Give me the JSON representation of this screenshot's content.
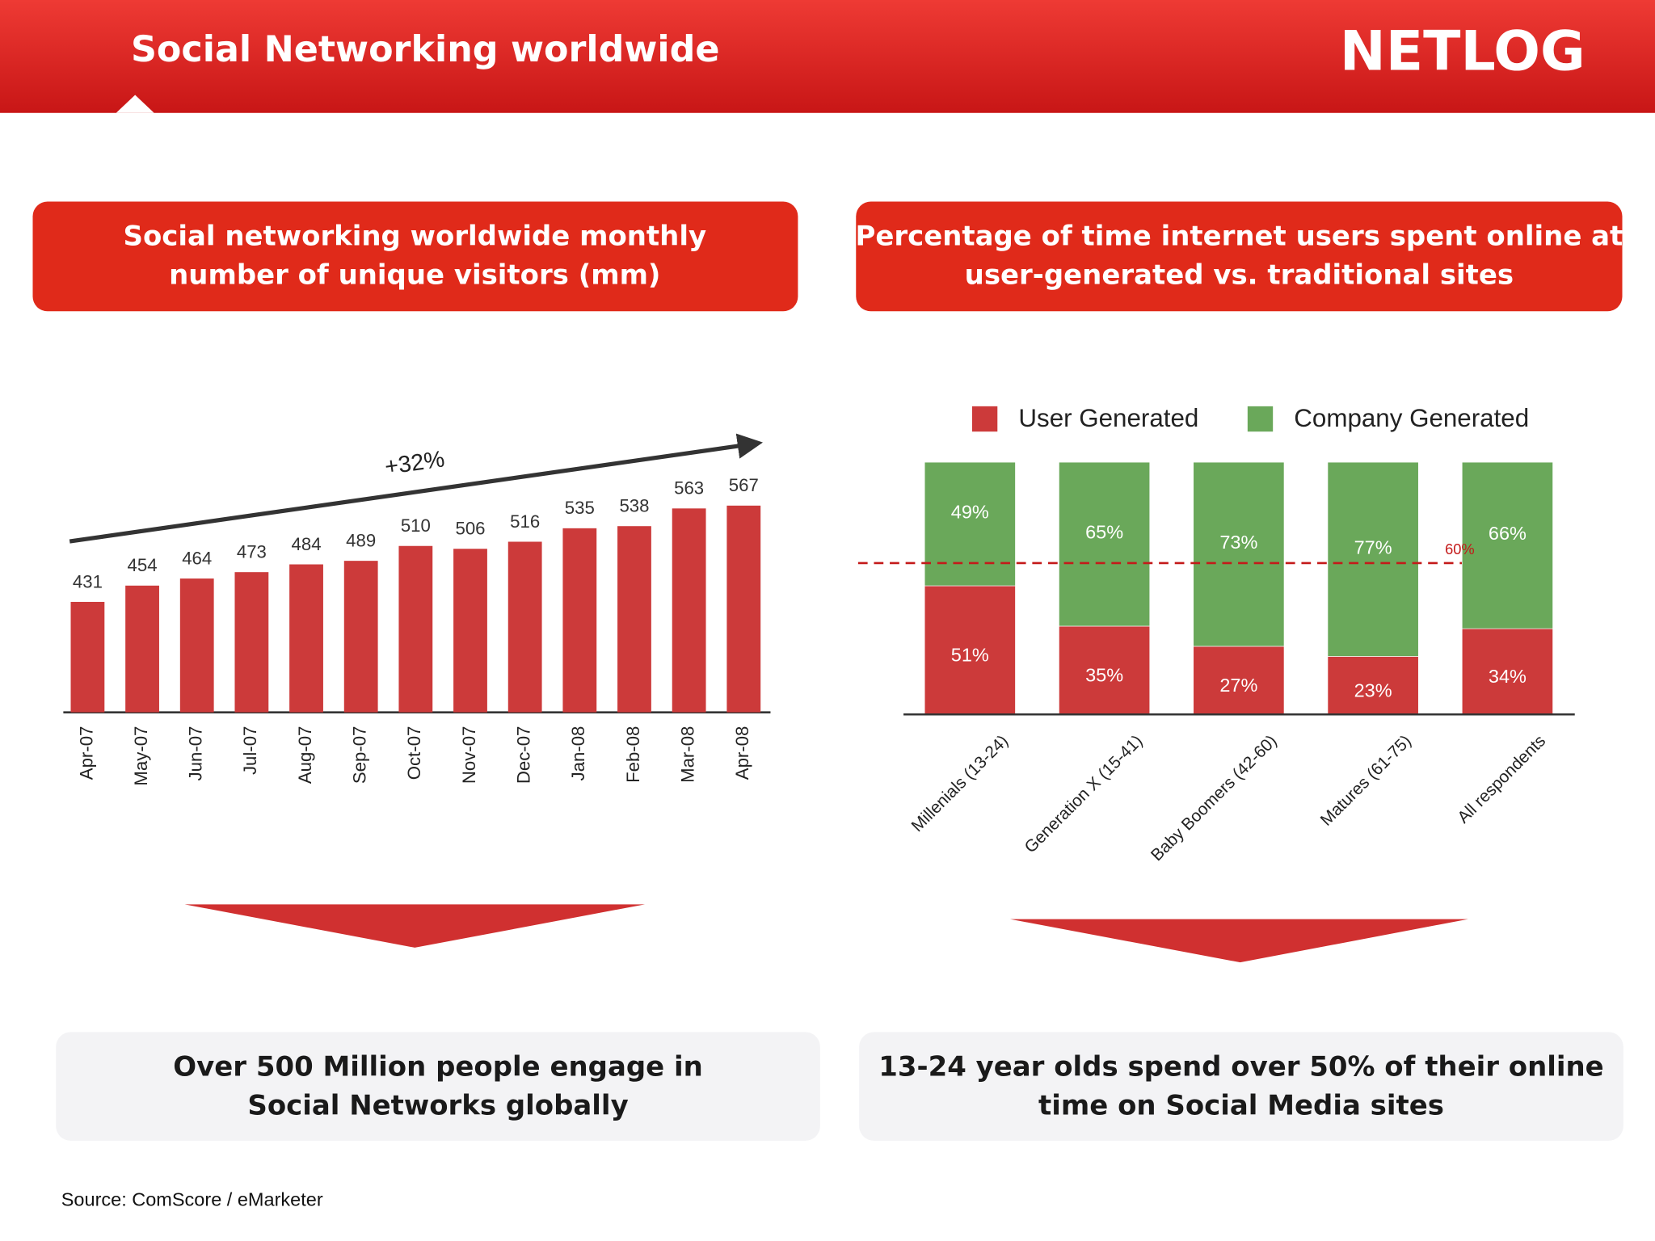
{
  "header": {
    "title": "Social Networking  worldwide",
    "logo": "NETLOG"
  },
  "chart_data": [
    {
      "type": "bar",
      "title": [
        "Social networking worldwide monthly",
        "number of unique visitors (mm)"
      ],
      "categories": [
        "Apr-07",
        "May-07",
        "Jun-07",
        "Jul-07",
        "Aug-07",
        "Sep-07",
        "Oct-07",
        "Nov-07",
        "Dec-07",
        "Jan-08",
        "Feb-08",
        "Mar-08",
        "Apr-08"
      ],
      "values": [
        431,
        454,
        464,
        473,
        484,
        489,
        510,
        506,
        516,
        535,
        538,
        563,
        567
      ],
      "color": "#cc3a3a",
      "ylim": [
        275,
        600
      ],
      "annotation": "+32%"
    },
    {
      "type": "stacked_bar",
      "title": [
        "Percentage of time internet users spent online at",
        "user-generated vs. traditional sites"
      ],
      "categories": [
        "Millenials (13-24)",
        "Generation X (15-41)",
        "Baby Boomers (42-60)",
        "Matures (61-75)",
        "All respondents"
      ],
      "series": [
        {
          "name": "User Generated",
          "color": "#cc3a3a",
          "values": [
            51,
            35,
            27,
            23,
            34
          ],
          "value_labels": [
            "51%",
            "35%",
            "27%",
            "23%",
            "34%"
          ]
        },
        {
          "name": "Company Generated",
          "color": "#6aa85a",
          "values": [
            49,
            65,
            73,
            77,
            66
          ],
          "value_labels": [
            "49%",
            "65%",
            "73%",
            "77%",
            "66%"
          ]
        }
      ],
      "ylim": [
        0,
        100
      ],
      "legend": "top",
      "reference_line": {
        "value": 60,
        "label": "60%"
      }
    }
  ],
  "takeaways": [
    [
      "Over 500 Million people engage in",
      "Social Networks globally"
    ],
    [
      "13-24 year olds spend over 50% of their online",
      "time on Social Media sites"
    ]
  ],
  "source": "Source: ComScore / eMarketer"
}
